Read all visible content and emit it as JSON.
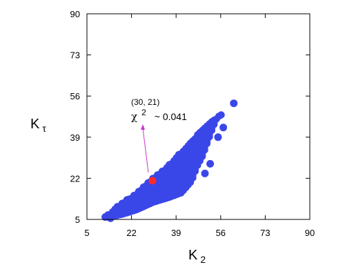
{
  "chart_data": {
    "type": "scatter",
    "xlim": [
      5,
      90
    ],
    "ylim": [
      5,
      90
    ],
    "xticks": [
      "5",
      "22",
      "39",
      "56",
      "73",
      "90"
    ],
    "yticks": [
      "5",
      "22",
      "39",
      "56",
      "73",
      "90"
    ],
    "xlabel": {
      "main": "K",
      "sub": "2"
    },
    "ylabel": {
      "main": "K",
      "sub": "τ"
    },
    "point_color": "#3a47e8",
    "highlight_color": "#ff2a2a",
    "arrow_color": "#cc33cc",
    "highlight": {
      "x": 30,
      "y": 21
    },
    "annotation": {
      "coords": "(30, 21)",
      "chi": "χ",
      "exp": "2",
      "value": "~ 0.041"
    },
    "band": {
      "lower": [
        [
          13,
          6
        ],
        [
          18,
          7
        ],
        [
          24,
          9
        ],
        [
          30,
          12
        ],
        [
          36,
          14
        ],
        [
          41,
          16
        ],
        [
          45,
          21
        ],
        [
          47,
          27
        ],
        [
          49,
          31
        ],
        [
          51,
          37
        ],
        [
          53,
          43
        ],
        [
          55,
          48
        ],
        [
          57,
          49
        ]
      ],
      "upper": [
        [
          13,
          7
        ],
        [
          16,
          10
        ],
        [
          20,
          13
        ],
        [
          25,
          17
        ],
        [
          30,
          22
        ],
        [
          35,
          26
        ],
        [
          39,
          31
        ],
        [
          43,
          35
        ],
        [
          47,
          40
        ],
        [
          51,
          44
        ],
        [
          54,
          47
        ],
        [
          56,
          48
        ],
        [
          57,
          49
        ]
      ]
    },
    "extra_points": [
      [
        61,
        53
      ],
      [
        57,
        43
      ],
      [
        55,
        39
      ],
      [
        12,
        6
      ],
      [
        14,
        5.5
      ],
      [
        52,
        28
      ],
      [
        50,
        24
      ]
    ]
  }
}
